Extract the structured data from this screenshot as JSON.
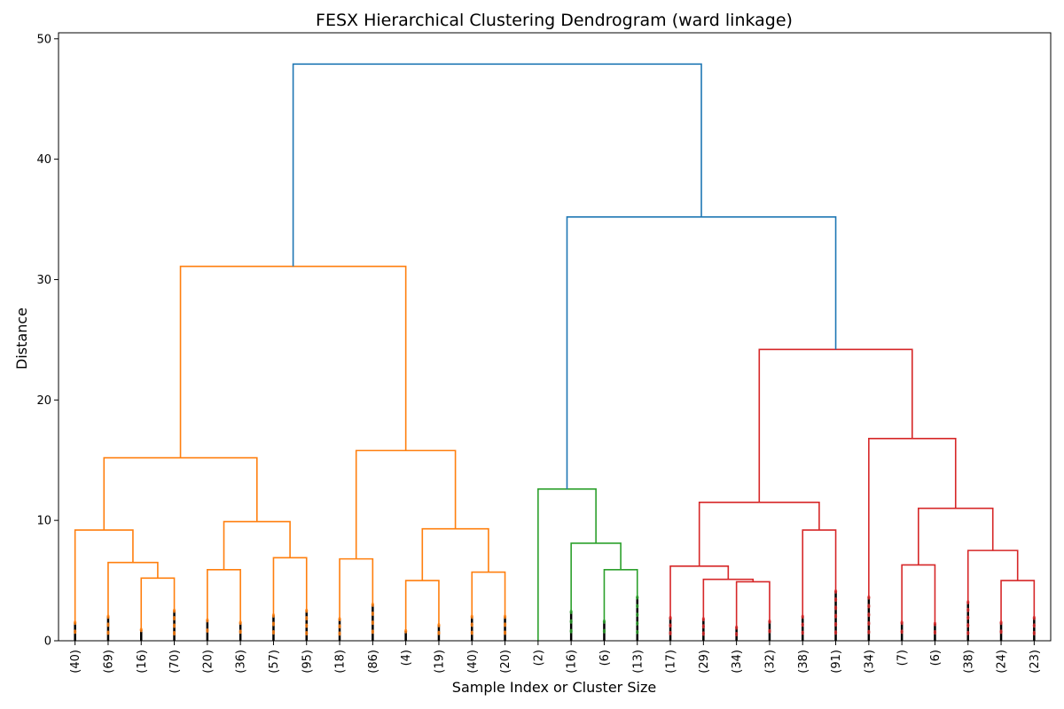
{
  "chart_data": {
    "type": "dendrogram",
    "title": "FESX Hierarchical Clustering Dendrogram (ward linkage)",
    "xlabel": "Sample Index or Cluster Size",
    "ylabel": "Distance",
    "ylim": [
      0,
      50.5
    ],
    "yticks": [
      0,
      10,
      20,
      30,
      40,
      50
    ],
    "grid": false,
    "leaf_labels": [
      "(40)",
      "(69)",
      "(16)",
      "(70)",
      "(20)",
      "(36)",
      "(57)",
      "(95)",
      "(18)",
      "(86)",
      "(4)",
      "(19)",
      "(40)",
      "(20)",
      "(2)",
      "(16)",
      "(6)",
      "(13)",
      "(17)",
      "(29)",
      "(34)",
      "(32)",
      "(38)",
      "(91)",
      "(34)",
      "(7)",
      "(6)",
      "(38)",
      "(24)",
      "(23)"
    ],
    "colors": {
      "above_threshold": "#1f77b4",
      "cluster_1": "#ff7f0e",
      "cluster_2": "#2ca02c",
      "cluster_3": "#d62728",
      "leaf_marks": "#000000"
    },
    "merges": [
      {
        "id": "o1",
        "left": 2,
        "right": 3,
        "height": 5.2,
        "color": "cluster_1"
      },
      {
        "id": "o2",
        "left": 1,
        "right": "o1",
        "height": 6.5,
        "color": "cluster_1"
      },
      {
        "id": "o3",
        "left": 0,
        "right": "o2",
        "height": 9.2,
        "color": "cluster_1"
      },
      {
        "id": "o4",
        "left": 4,
        "right": 5,
        "height": 5.9,
        "color": "cluster_1"
      },
      {
        "id": "o5",
        "left": 6,
        "right": 7,
        "height": 6.9,
        "color": "cluster_1"
      },
      {
        "id": "o6",
        "left": "o4",
        "right": "o5",
        "height": 9.9,
        "color": "cluster_1"
      },
      {
        "id": "o7",
        "left": "o3",
        "right": "o6",
        "height": 15.2,
        "color": "cluster_1"
      },
      {
        "id": "o8",
        "left": 8,
        "right": 9,
        "height": 6.8,
        "color": "cluster_1"
      },
      {
        "id": "o9",
        "left": 10,
        "right": 11,
        "height": 5.0,
        "color": "cluster_1"
      },
      {
        "id": "o10",
        "left": 12,
        "right": 13,
        "height": 5.7,
        "color": "cluster_1"
      },
      {
        "id": "o11",
        "left": "o9",
        "right": "o10",
        "height": 9.3,
        "color": "cluster_1"
      },
      {
        "id": "o12",
        "left": "o8",
        "right": "o11",
        "height": 15.8,
        "color": "cluster_1"
      },
      {
        "id": "o13",
        "left": "o7",
        "right": "o12",
        "height": 31.1,
        "color": "cluster_1"
      },
      {
        "id": "g1",
        "left": 16,
        "right": 17,
        "height": 5.9,
        "color": "cluster_2"
      },
      {
        "id": "g2",
        "left": 15,
        "right": "g1",
        "height": 8.1,
        "color": "cluster_2"
      },
      {
        "id": "g3",
        "left": 14,
        "right": "g2",
        "height": 12.6,
        "color": "cluster_2"
      },
      {
        "id": "r1",
        "left": 20,
        "right": 21,
        "height": 4.9,
        "color": "cluster_3"
      },
      {
        "id": "r2",
        "left": 19,
        "right": "r1",
        "height": 5.1,
        "color": "cluster_3"
      },
      {
        "id": "r3",
        "left": 18,
        "right": "r2",
        "height": 6.2,
        "color": "cluster_3"
      },
      {
        "id": "r4",
        "left": 22,
        "right": 23,
        "height": 9.2,
        "color": "cluster_3"
      },
      {
        "id": "r5",
        "left": "r3",
        "right": "r4",
        "height": 11.5,
        "color": "cluster_3"
      },
      {
        "id": "r6",
        "left": 25,
        "right": 26,
        "height": 6.3,
        "color": "cluster_3"
      },
      {
        "id": "r7",
        "left": 28,
        "right": 29,
        "height": 5.0,
        "color": "cluster_3"
      },
      {
        "id": "r8",
        "left": 27,
        "right": "r7",
        "height": 7.5,
        "color": "cluster_3"
      },
      {
        "id": "r9",
        "left": "r6",
        "right": "r8",
        "height": 11.0,
        "color": "cluster_3"
      },
      {
        "id": "r10",
        "left": 24,
        "right": "r9",
        "height": 16.8,
        "color": "cluster_3"
      },
      {
        "id": "r11",
        "left": "r5",
        "right": "r10",
        "height": 24.2,
        "color": "cluster_3"
      },
      {
        "id": "b1",
        "left": "g3",
        "right": "r11",
        "height": 35.2,
        "color": "above_threshold"
      },
      {
        "id": "b2",
        "left": "o13",
        "right": "b1",
        "height": 47.9,
        "color": "above_threshold"
      }
    ],
    "leaf_subtree_heights": [
      1.5,
      2.0,
      0.9,
      2.5,
      1.7,
      1.5,
      2.1,
      2.5,
      1.8,
      3.0,
      0.8,
      1.3,
      2.0,
      2.0,
      0,
      2.4,
      1.6,
      3.6,
      1.9,
      1.8,
      1.1,
      1.6,
      2.0,
      4.1,
      3.6,
      1.5,
      1.4,
      3.2,
      1.5,
      1.9
    ]
  }
}
